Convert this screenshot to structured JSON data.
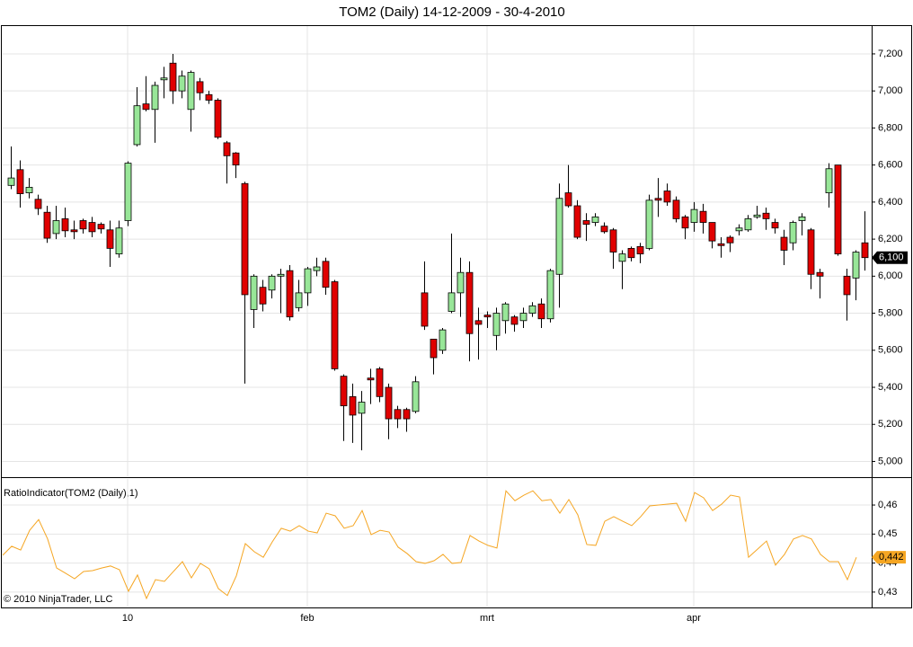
{
  "chart_data": [
    {
      "type": "candlestick",
      "title": "TOM2 (Daily)  14-12-2009 - 30-4-2010",
      "categories": [
        null,
        null,
        null,
        null,
        null,
        null,
        null,
        null,
        null,
        null,
        null,
        null,
        null,
        "10",
        null,
        null,
        null,
        null,
        null,
        null,
        null,
        null,
        null,
        null,
        null,
        null,
        null,
        null,
        null,
        null,
        null,
        null,
        null,
        "feb",
        null,
        null,
        null,
        null,
        null,
        null,
        null,
        null,
        null,
        null,
        null,
        null,
        null,
        null,
        null,
        null,
        null,
        null,
        null,
        "mrt",
        null,
        null,
        null,
        null,
        null,
        null,
        null,
        null,
        null,
        null,
        null,
        null,
        null,
        null,
        null,
        null,
        null,
        null,
        null,
        null,
        null,
        null,
        "apr",
        null,
        null,
        null,
        null,
        null,
        null,
        null,
        null,
        null,
        null,
        null,
        null,
        null,
        null,
        null,
        null,
        null,
        null,
        null
      ],
      "open": [
        6490,
        6575,
        6450,
        6415,
        6345,
        6230,
        6310,
        6250,
        6300,
        6290,
        6280,
        6250,
        6120,
        6300,
        6710,
        6930,
        6900,
        7060,
        7150,
        7000,
        6900,
        7050,
        6980,
        6950,
        6720,
        6665,
        6500,
        5820,
        5940,
        5925,
        6000,
        6030,
        5830,
        5910,
        6030,
        6080,
        5970,
        5460,
        5350,
        5260,
        5450,
        5500,
        5400,
        5280,
        5280,
        5270,
        5910,
        5660,
        5600,
        5810,
        5910,
        6020,
        5760,
        5790,
        5680,
        5760,
        5780,
        5760,
        5800,
        5850,
        5770,
        6010,
        6450,
        6380,
        6300,
        6290,
        6270,
        6250,
        6080,
        6150,
        6160,
        6150,
        6420,
        6460,
        6410,
        6320,
        6290,
        6350,
        6290,
        6175,
        6210,
        6245,
        6250,
        6320,
        6340,
        6290,
        6210,
        6180,
        6300,
        6250,
        6020,
        6450,
        6600,
        6000,
        5990,
        6180
      ],
      "high": [
        6700,
        6625,
        6530,
        6440,
        6380,
        6380,
        6370,
        6300,
        6310,
        6320,
        6290,
        6300,
        6300,
        6620,
        7020,
        7080,
        7050,
        7130,
        7200,
        7110,
        7110,
        7070,
        7000,
        6960,
        6730,
        6670,
        6510,
        6010,
        5980,
        6010,
        6040,
        6060,
        5980,
        6050,
        6100,
        6100,
        5980,
        5470,
        5420,
        5380,
        5500,
        5510,
        5420,
        5300,
        5290,
        5460,
        6080,
        5660,
        5720,
        6230,
        6100,
        6080,
        5830,
        5810,
        5830,
        5860,
        5790,
        5830,
        5860,
        5880,
        6040,
        6500,
        6600,
        6410,
        6340,
        6340,
        6290,
        6260,
        6140,
        6160,
        6180,
        6440,
        6530,
        6500,
        6430,
        6330,
        6400,
        6390,
        6290,
        6210,
        6220,
        6280,
        6330,
        6380,
        6370,
        6310,
        6250,
        6300,
        6340,
        6260,
        6040,
        6610,
        6600,
        6040,
        6140,
        6350
      ],
      "low": [
        6470,
        6370,
        6420,
        6330,
        6180,
        6200,
        6210,
        6200,
        6230,
        6210,
        6230,
        6050,
        6100,
        6270,
        6700,
        6890,
        6720,
        6960,
        6930,
        6960,
        6780,
        6950,
        6930,
        6740,
        6500,
        6530,
        5420,
        5720,
        5810,
        5880,
        5800,
        5760,
        5810,
        5840,
        6000,
        5900,
        5490,
        5110,
        5100,
        5060,
        5310,
        5320,
        5120,
        5180,
        5160,
        5260,
        5710,
        5470,
        5580,
        5800,
        5780,
        5540,
        5550,
        5720,
        5600,
        5690,
        5700,
        5720,
        5780,
        5720,
        5750,
        5830,
        6370,
        6200,
        6190,
        6270,
        6230,
        6040,
        5930,
        6080,
        6070,
        6140,
        6320,
        6380,
        6290,
        6200,
        6240,
        6230,
        6150,
        6100,
        6130,
        6220,
        6240,
        6310,
        6250,
        6230,
        6060,
        6140,
        6220,
        5930,
        5880,
        6370,
        6110,
        5760,
        5870,
        6030
      ],
      "close": [
        6530,
        6445,
        6480,
        6365,
        6205,
        6300,
        6245,
        6240,
        6255,
        6240,
        6255,
        6150,
        6260,
        6610,
        6920,
        6900,
        7030,
        7070,
        7000,
        7080,
        7100,
        6990,
        6950,
        6750,
        6650,
        6600,
        5900,
        6000,
        5850,
        6000,
        6010,
        5780,
        5910,
        6040,
        6050,
        5940,
        5500,
        5300,
        5250,
        5320,
        5440,
        5350,
        5230,
        5230,
        5230,
        5430,
        5730,
        5560,
        5710,
        5910,
        6020,
        5690,
        5740,
        5780,
        5800,
        5850,
        5740,
        5800,
        5840,
        5770,
        6030,
        6420,
        6380,
        6210,
        6280,
        6320,
        6240,
        6130,
        6120,
        6100,
        6120,
        6410,
        6410,
        6400,
        6310,
        6260,
        6360,
        6290,
        6190,
        6165,
        6180,
        6260,
        6310,
        6330,
        6310,
        6260,
        6140,
        6290,
        6320,
        6010,
        6000,
        6580,
        6120,
        5900,
        6130,
        6100
      ],
      "last_label": "6,100",
      "up_color": "#98e698",
      "down_color": "#e00000",
      "ylim": [
        4915,
        7355
      ],
      "yticks": [
        {
          "value": 5000,
          "label": "5,000"
        },
        {
          "value": 5200,
          "label": "5,200"
        },
        {
          "value": 5400,
          "label": "5,400"
        },
        {
          "value": 5600,
          "label": "5,600"
        },
        {
          "value": 5800,
          "label": "5,800"
        },
        {
          "value": 6000,
          "label": "6,000"
        },
        {
          "value": 6200,
          "label": "6,200"
        },
        {
          "value": 6400,
          "label": "6,400"
        },
        {
          "value": 6600,
          "label": "6,600"
        },
        {
          "value": 6800,
          "label": "6,800"
        },
        {
          "value": 7000,
          "label": "7,000"
        },
        {
          "value": 7200,
          "label": "7,200"
        }
      ],
      "grid": true
    },
    {
      "type": "line",
      "title": "RatioIndicator(TOM2 (Daily),1)",
      "values": [
        0.4427,
        0.4458,
        0.4445,
        0.4513,
        0.455,
        0.4483,
        0.4383,
        0.4365,
        0.4346,
        0.4371,
        0.4374,
        0.4383,
        0.439,
        0.4377,
        0.4303,
        0.4359,
        0.4278,
        0.4343,
        0.4337,
        0.4371,
        0.4405,
        0.4349,
        0.4399,
        0.438,
        0.4312,
        0.4288,
        0.4356,
        0.4467,
        0.4439,
        0.442,
        0.4473,
        0.452,
        0.451,
        0.4529,
        0.451,
        0.4504,
        0.4572,
        0.4563,
        0.452,
        0.4529,
        0.4581,
        0.4498,
        0.4513,
        0.4507,
        0.4455,
        0.4433,
        0.4405,
        0.4399,
        0.4408,
        0.443,
        0.4399,
        0.4402,
        0.4495,
        0.4476,
        0.4461,
        0.4452,
        0.4649,
        0.4615,
        0.4634,
        0.4649,
        0.4615,
        0.4619,
        0.4572,
        0.4619,
        0.4566,
        0.4464,
        0.4461,
        0.4544,
        0.456,
        0.4544,
        0.4529,
        0.456,
        0.4597,
        0.46,
        0.4603,
        0.4606,
        0.4544,
        0.4643,
        0.4625,
        0.4581,
        0.4603,
        0.4634,
        0.4628,
        0.442,
        0.4448,
        0.4476,
        0.4393,
        0.443,
        0.4483,
        0.4495,
        0.4483,
        0.443,
        0.4405,
        0.4405,
        0.4343,
        0.442
      ],
      "last_label": "0,442",
      "color": "#f5a623",
      "ylim": [
        0.4247,
        0.4693
      ],
      "yticks": [
        {
          "value": 0.43,
          "label": "0,43"
        },
        {
          "value": 0.44,
          "label": "0,44"
        },
        {
          "value": 0.45,
          "label": "0,45"
        },
        {
          "value": 0.46,
          "label": "0,46"
        }
      ],
      "grid": true,
      "copyright": "© 2010 NinjaTrader, LLC"
    }
  ]
}
